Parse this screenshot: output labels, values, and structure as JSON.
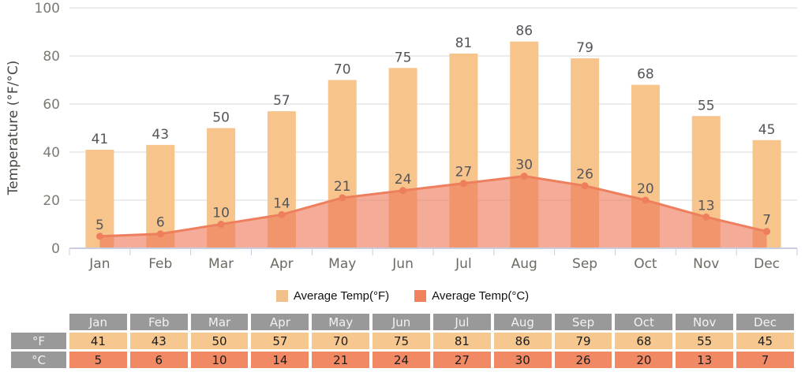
{
  "chart_data": {
    "type": "bar",
    "title": "",
    "categories": [
      "Jan",
      "Feb",
      "Mar",
      "Apr",
      "May",
      "Jun",
      "Jul",
      "Aug",
      "Sep",
      "Oct",
      "Nov",
      "Dec"
    ],
    "series": [
      {
        "name": "Average Temp(°F)",
        "type": "bar",
        "color": "#F7C48C",
        "values": [
          41,
          43,
          50,
          57,
          70,
          75,
          81,
          86,
          79,
          68,
          55,
          45
        ]
      },
      {
        "name": "Average Temp(°C)",
        "type": "area",
        "color": "#EE7F5E",
        "area_fill": "#EE7858",
        "area_opacity": 0.62,
        "values": [
          5,
          6,
          10,
          14,
          21,
          24,
          27,
          30,
          26,
          20,
          13,
          7
        ]
      }
    ],
    "xlabel": "",
    "ylabel": "Temperature (°F/°C)",
    "ylim": [
      0,
      100
    ],
    "yticks": [
      0,
      20,
      40,
      60,
      80,
      100
    ],
    "grid": "horizontal",
    "legend_position": "bottom",
    "value_labels_shown": true
  },
  "legend": {
    "items": [
      {
        "label": "Average Temp(°F)",
        "color": "#F2C08A"
      },
      {
        "label": "Average Temp(°C)",
        "color": "#F0835E"
      }
    ]
  },
  "table": {
    "corner_label": "",
    "columns": [
      "Jan",
      "Feb",
      "Mar",
      "Apr",
      "May",
      "Jun",
      "Jul",
      "Aug",
      "Sep",
      "Oct",
      "Nov",
      "Dec"
    ],
    "header_bg": "#999999",
    "rows": [
      {
        "label": "°F",
        "bg": "#F6C78F",
        "values": [
          "41",
          "43",
          "50",
          "57",
          "70",
          "75",
          "81",
          "86",
          "79",
          "68",
          "55",
          "45"
        ]
      },
      {
        "label": "°C",
        "bg": "#F18A64",
        "values": [
          "5",
          "6",
          "10",
          "14",
          "21",
          "24",
          "27",
          "30",
          "26",
          "20",
          "13",
          "7"
        ]
      }
    ]
  },
  "colors": {
    "grid_line": "#D9D9D9",
    "axis_line": "#C8CEDF",
    "ytick_label": "#7C7A72",
    "month_label": "#6C6A62",
    "axis_title": "#45443E",
    "value_label": "#54555A",
    "bar": "#F7C48C",
    "line": "#EE7F5E",
    "area": "#EE7858",
    "table_header": "#999999"
  }
}
